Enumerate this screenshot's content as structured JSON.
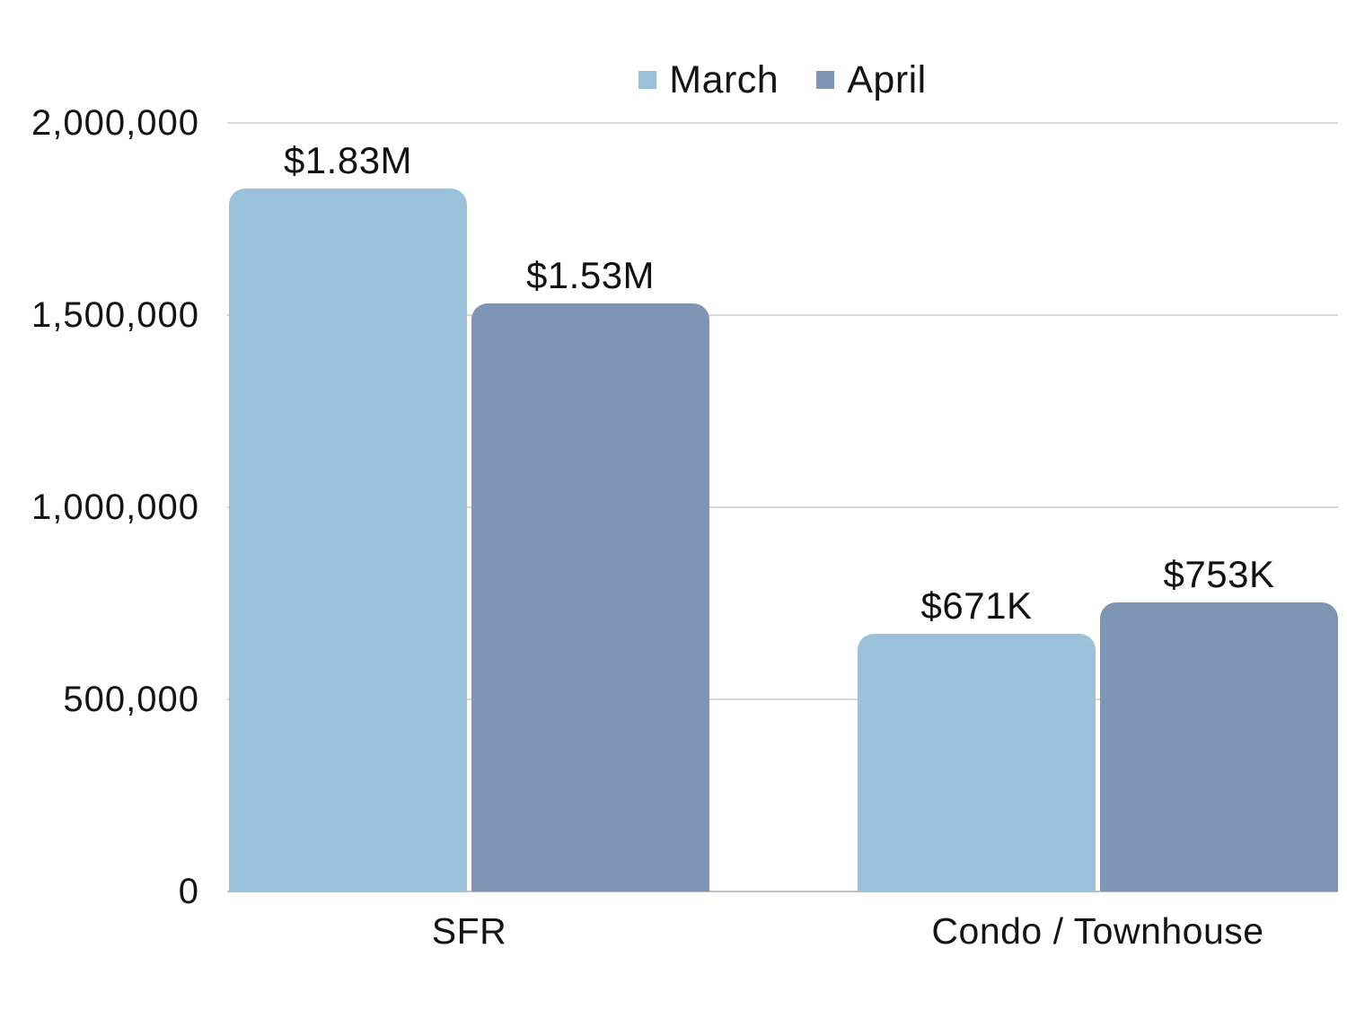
{
  "chart_data": {
    "type": "bar",
    "title": "",
    "categories": [
      "SFR",
      "Condo / Townhouse"
    ],
    "series": [
      {
        "name": "March",
        "color": "#9ac3db",
        "values": [
          1830000,
          671000
        ],
        "value_labels": [
          "$1.83M",
          "$671K"
        ]
      },
      {
        "name": "April",
        "color": "#7e96b3",
        "values": [
          1530000,
          753000
        ],
        "value_labels": [
          "$1.53M",
          "$753K"
        ]
      }
    ],
    "ylim": [
      0,
      2000000
    ],
    "yticks": [
      {
        "value": 0,
        "label": "0"
      },
      {
        "value": 500000,
        "label": "500,000"
      },
      {
        "value": 1000000,
        "label": "1,000,000"
      },
      {
        "value": 1500000,
        "label": "1,500,000"
      },
      {
        "value": 2000000,
        "label": "2,000,000"
      }
    ],
    "grid": "horizontal",
    "legend_position": "top-center",
    "colors": {
      "gridline": "#d9d9d9",
      "baseline": "#c0c0c0",
      "text": "#141414"
    }
  }
}
